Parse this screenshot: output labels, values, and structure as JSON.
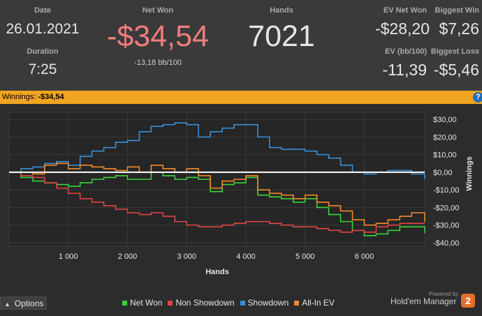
{
  "stats": {
    "date_label": "Date",
    "date_value": "26.01.2021",
    "duration_label": "Duration",
    "duration_value": "7:25",
    "net_won_label": "Net Won",
    "net_won_value": "-$34,54",
    "net_won_sub": "-13,18 bb/100",
    "hands_label": "Hands",
    "hands_value": "7021",
    "ev_net_won_label": "EV Net Won",
    "ev_net_won_value": "-$28,20",
    "biggest_win_label": "Biggest Win",
    "biggest_win_value": "$7,26",
    "ev_bb_label": "EV (bb/100)",
    "ev_bb_value": "-11,39",
    "biggest_loss_label": "Biggest Loss",
    "biggest_loss_value": "-$5,46"
  },
  "winbar": {
    "label": "Winnings:",
    "amount": "-$34,54",
    "help_glyph": "?"
  },
  "colors": {
    "net_won_value": "#f07d7d",
    "winbar": "#f0a520",
    "net_won": "#3ad33a",
    "non_showdown": "#e04545",
    "showdown": "#3a8fd8",
    "all_in_ev": "#f08a2a"
  },
  "footer": {
    "options_label": "Options",
    "options_icon": "chevron-up-icon",
    "powered_by": "Powered by",
    "brand": "Hold'em Manager",
    "brand_badge": "2"
  },
  "chart_data": {
    "type": "line",
    "xlabel": "Hands",
    "ylabel": "Winnings",
    "xlim": [
      0,
      7021
    ],
    "ylim": [
      -42,
      34
    ],
    "x_ticks": [
      1000,
      2000,
      3000,
      4000,
      5000,
      6000
    ],
    "x_tick_labels": [
      "1 000",
      "2 000",
      "3 000",
      "4 000",
      "5 000",
      "6 000"
    ],
    "y_ticks": [
      30,
      20,
      10,
      0,
      -10,
      -20,
      -30,
      -40
    ],
    "y_tick_labels": [
      "$30,00",
      "$20,00",
      "$10,00",
      "$0,00",
      "-$10,00",
      "-$20,00",
      "-$30,00",
      "-$40,00"
    ],
    "grid": true,
    "legend_position": "bottom",
    "series": [
      {
        "name": "Net Won",
        "color": "#3ad33a",
        "x": [
          0,
          200,
          400,
          600,
          800,
          1000,
          1200,
          1400,
          1600,
          1800,
          2000,
          2200,
          2400,
          2600,
          2800,
          3000,
          3200,
          3400,
          3600,
          3800,
          4000,
          4200,
          4400,
          4600,
          4800,
          5000,
          5200,
          5400,
          5600,
          5800,
          6000,
          6200,
          6400,
          6600,
          6800,
          7021
        ],
        "y": [
          0,
          -3,
          -5,
          -6,
          -7,
          -8,
          -6,
          -4,
          -3,
          -2,
          -4,
          -4,
          0,
          -2,
          -4,
          -3,
          -4,
          -11,
          -7,
          -6,
          -3,
          -13,
          -14,
          -15,
          -17,
          -15,
          -20,
          -24,
          -28,
          -33,
          -36,
          -35,
          -33,
          -31,
          -31,
          -34.54
        ]
      },
      {
        "name": "Non Showdown",
        "color": "#e04545",
        "x": [
          0,
          200,
          400,
          600,
          800,
          1000,
          1200,
          1400,
          1600,
          1800,
          2000,
          2200,
          2400,
          2600,
          2800,
          3000,
          3200,
          3400,
          3600,
          3800,
          4000,
          4200,
          4400,
          4600,
          4800,
          5000,
          5200,
          5400,
          5600,
          5800,
          6000,
          6200,
          6400,
          6600,
          6800,
          7021
        ],
        "y": [
          0,
          -2,
          -3,
          -6,
          -9,
          -12,
          -15,
          -17,
          -19,
          -21,
          -23,
          -24,
          -23,
          -25,
          -28,
          -30,
          -31,
          -31,
          -30,
          -29,
          -28,
          -28,
          -29,
          -30,
          -31,
          -31,
          -32,
          -33,
          -34,
          -33,
          -34,
          -31,
          -30,
          -29,
          -29,
          -29
        ]
      },
      {
        "name": "Showdown",
        "color": "#3a8fd8",
        "x": [
          0,
          200,
          400,
          600,
          800,
          1000,
          1200,
          1400,
          1600,
          1800,
          2000,
          2200,
          2400,
          2600,
          2800,
          3000,
          3200,
          3400,
          3600,
          3800,
          4000,
          4200,
          4400,
          4600,
          4800,
          5000,
          5200,
          5400,
          5600,
          5800,
          6000,
          6200,
          6400,
          6600,
          6800,
          7021
        ],
        "y": [
          0,
          2,
          3,
          5,
          6,
          4,
          9,
          12,
          14,
          17,
          18,
          23,
          26,
          27,
          28,
          27,
          20,
          23,
          25,
          27,
          27,
          20,
          14,
          13,
          13,
          12,
          10,
          8,
          4,
          0,
          -1,
          0,
          1,
          1,
          -1,
          -4
        ]
      },
      {
        "name": "All-In EV",
        "color": "#f08a2a",
        "x": [
          0,
          200,
          400,
          600,
          800,
          1000,
          1200,
          1400,
          1600,
          1800,
          2000,
          2200,
          2400,
          2600,
          2800,
          3000,
          3200,
          3400,
          3600,
          3800,
          4000,
          4200,
          4400,
          4600,
          4800,
          5000,
          5200,
          5400,
          5600,
          5800,
          6000,
          6200,
          6400,
          6600,
          6800,
          7021
        ],
        "y": [
          0,
          0,
          -1,
          4,
          5,
          2,
          4,
          3,
          2,
          1,
          3,
          0,
          4,
          2,
          0,
          2,
          -2,
          -9,
          -5,
          -4,
          -2,
          -10,
          -12,
          -13,
          -15,
          -13,
          -17,
          -19,
          -22,
          -27,
          -30,
          -29,
          -27,
          -25,
          -23,
          -28.2
        ]
      }
    ]
  }
}
